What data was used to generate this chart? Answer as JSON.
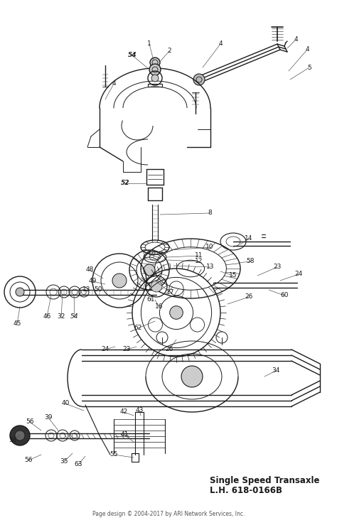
{
  "title_line1": "Single Speed Transaxle",
  "title_line2": "L.H. 618-0166B",
  "footer": "Page design © 2004-2017 by ARI Network Services, Inc.",
  "bg_color": "#ffffff",
  "line_color": "#1a1a1a",
  "title_fontsize": 8.5,
  "footer_fontsize": 5.5,
  "fig_width": 4.74,
  "fig_height": 7.39,
  "dpi": 100
}
